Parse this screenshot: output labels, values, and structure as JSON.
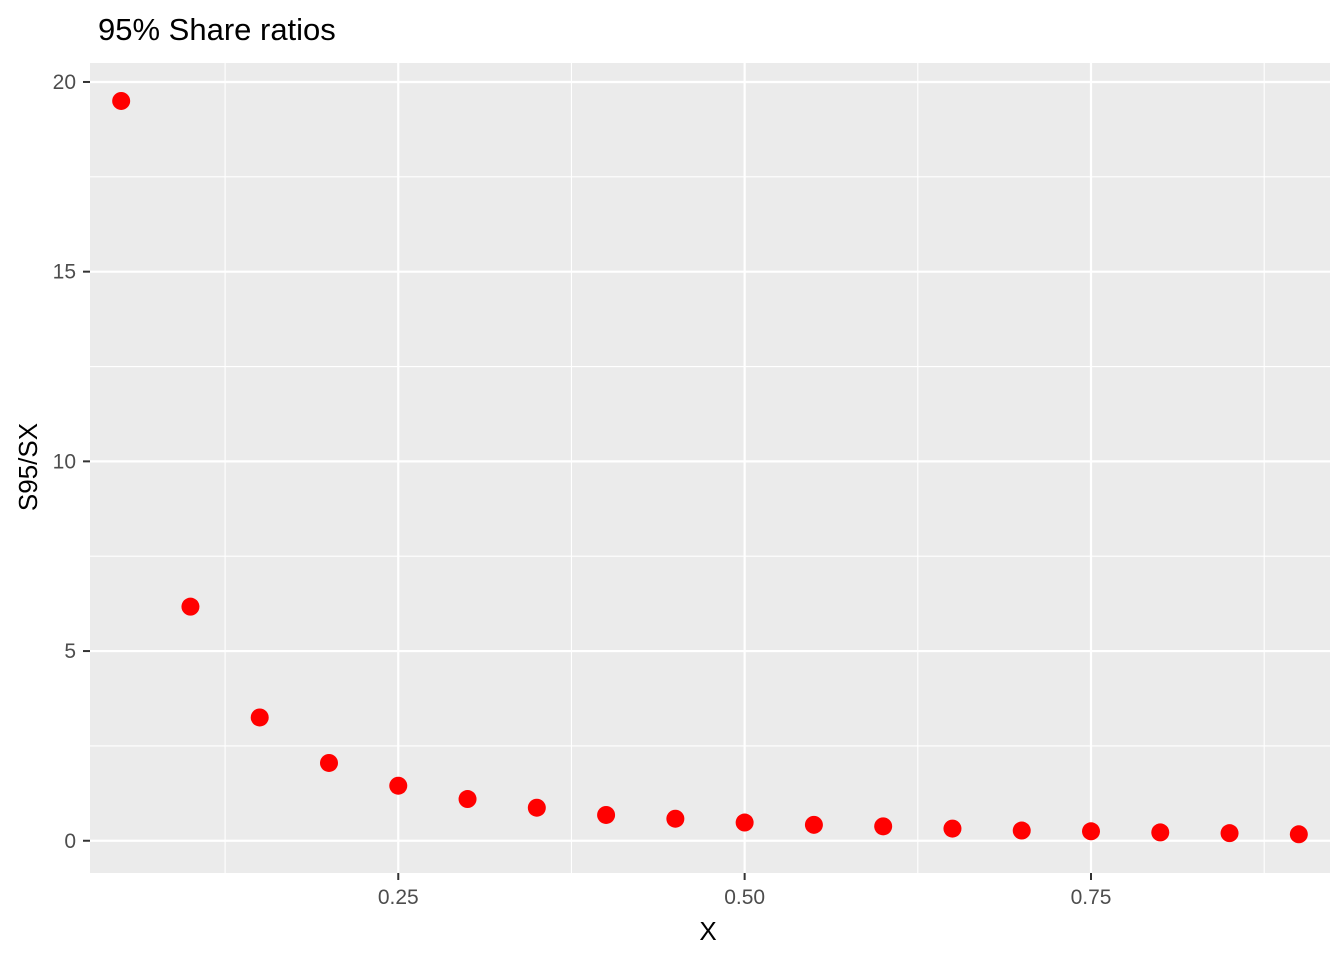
{
  "chart_data": {
    "type": "scatter",
    "title": "95% Share ratios",
    "xlabel": "X",
    "ylabel": "S95/SX",
    "xlim": [
      0.0275,
      0.9225
    ],
    "ylim": [
      -0.85,
      20.5
    ],
    "x_major_ticks": [
      0.25,
      0.5,
      0.75
    ],
    "x_tick_labels": [
      "0.25",
      "0.50",
      "0.75"
    ],
    "x_minor_ticks": [
      0.125,
      0.375,
      0.625,
      0.875
    ],
    "y_major_ticks": [
      0,
      5,
      10,
      15,
      20
    ],
    "y_tick_labels": [
      "0",
      "5",
      "10",
      "15",
      "20"
    ],
    "y_minor_ticks": [
      2.5,
      7.5,
      12.5,
      17.5
    ],
    "grid": true,
    "legend": "none",
    "colors": {
      "panel_background": "#EBEBEB",
      "grid_line": "#FFFFFF",
      "point": "#FF0000",
      "tick_mark": "#333333"
    },
    "series": [
      {
        "x": [
          0.05,
          0.1,
          0.15,
          0.2,
          0.25,
          0.3,
          0.35,
          0.4,
          0.45,
          0.5,
          0.55,
          0.6,
          0.65,
          0.7,
          0.75,
          0.8,
          0.85,
          0.9
        ],
        "values": [
          19.5,
          6.17,
          3.25,
          2.05,
          1.45,
          1.1,
          0.87,
          0.68,
          0.58,
          0.48,
          0.42,
          0.38,
          0.32,
          0.27,
          0.25,
          0.22,
          0.2,
          0.17
        ]
      }
    ]
  }
}
